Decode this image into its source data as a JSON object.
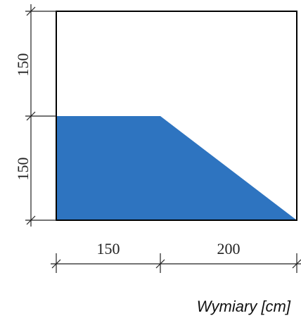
{
  "dimensions": {
    "left_upper": "150",
    "left_lower": "150",
    "bottom_left": "150",
    "bottom_right": "200"
  },
  "caption": "Wymiary [cm]",
  "colors": {
    "fill": "#2e74c0",
    "outline": "#000000",
    "dimension_line": "#222222"
  }
}
